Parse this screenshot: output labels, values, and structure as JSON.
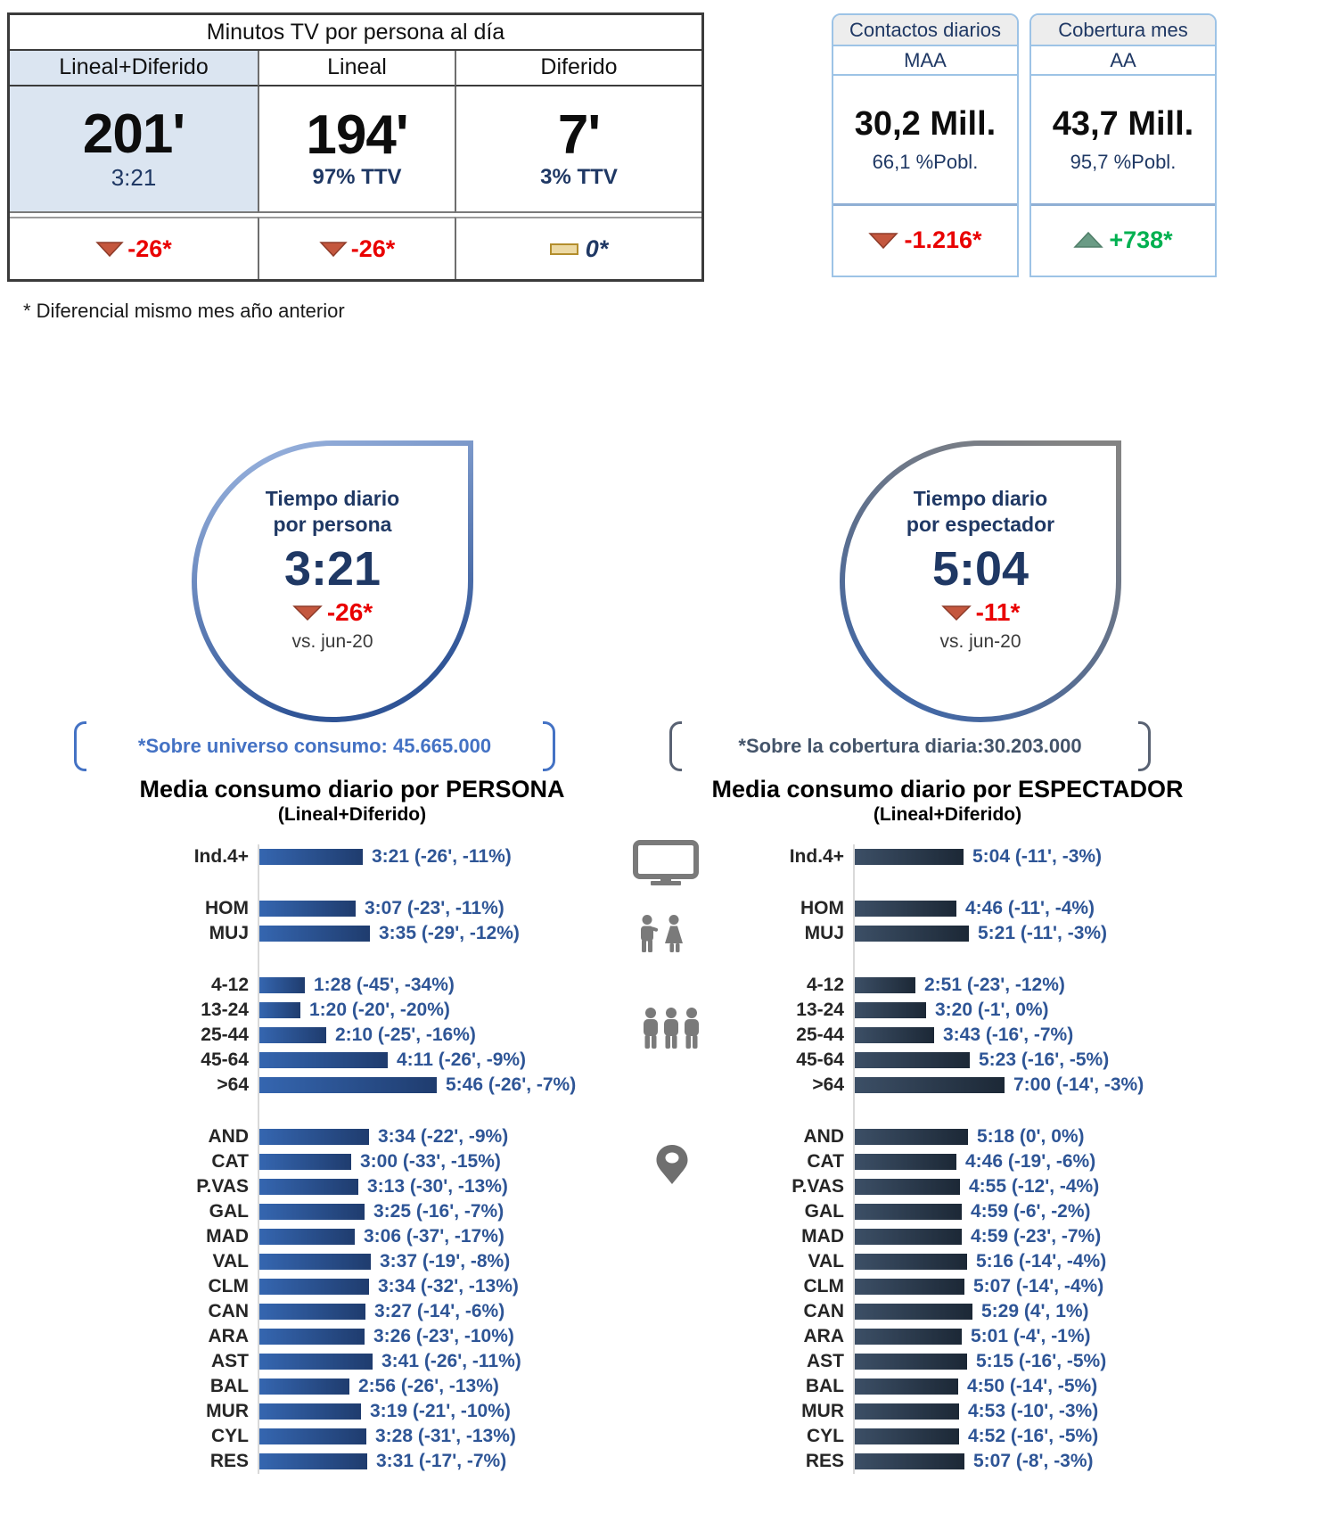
{
  "minutes_table": {
    "title": "Minutos TV por persona al día",
    "columns": [
      {
        "header": "Lineal+Diferido",
        "value": "201'",
        "sub": "3:21",
        "change": "-26*",
        "indicator": "down",
        "trend": "negative"
      },
      {
        "header": "Lineal",
        "value": "194'",
        "sub": "97% TTV",
        "change": "-26*",
        "indicator": "down",
        "trend": "negative"
      },
      {
        "header": "Diferido",
        "value": "7'",
        "sub": "3% TTV",
        "change": "0*",
        "indicator": "flat",
        "trend": "neutral"
      }
    ]
  },
  "kpi_boxes": [
    {
      "title": "Contactos diarios",
      "audience": "MAA",
      "value": "30,2 Mill.",
      "sub": "66,1 %Pobl.",
      "change": "-1.216*",
      "indicator": "down",
      "trend": "negative"
    },
    {
      "title": "Cobertura mes",
      "audience": "AA",
      "value": "43,7 Mill.",
      "sub": "95,7 %Pobl.",
      "change": "+738*",
      "indicator": "up",
      "trend": "positive"
    }
  ],
  "footnote": "* Diferencial  mismo mes año anterior",
  "drops": [
    {
      "title_lines": [
        "Tiempo diario",
        "por persona"
      ],
      "value": "3:21",
      "change": "-26*",
      "vs": "vs. jun-20"
    },
    {
      "title_lines": [
        "Tiempo diario",
        "por espectador"
      ],
      "value": "5:04",
      "change": "-11*",
      "vs": "vs. jun-20"
    }
  ],
  "icons": {
    "total": "tv-icon",
    "gender": "couple-icon",
    "age": "people-group-icon",
    "region": "location-pin-icon"
  },
  "colors": {
    "navy": "#1f3864",
    "chart_value_blue": "#2e5596",
    "negative_red": "#e90000",
    "positive_green": "#00b050",
    "person_bar_start": "#3566b0",
    "person_bar_end": "#1f3c6e",
    "spectator_bar_start": "#3c4f66",
    "spectator_bar_end": "#1c2836",
    "note_blue": "#4472c4",
    "note_slate": "#44546a"
  },
  "chart_data": [
    {
      "type": "bar",
      "orientation": "horizontal",
      "title": "Media consumo diario por PERSONA",
      "subtitle": "(Lineal+Diferido)",
      "note": "*Sobre universo consumo: 45.665.000",
      "unit": "hh:mm per day (diff vs jun-20)",
      "categories": [
        "Ind.4+",
        "HOM",
        "MUJ",
        "4-12",
        "13-24",
        "25-44",
        "45-64",
        ">64",
        "AND",
        "CAT",
        "P.VAS",
        "GAL",
        "MAD",
        "VAL",
        "CLM",
        "CAN",
        "ARA",
        "AST",
        "BAL",
        "MUR",
        "CYL",
        "RES"
      ],
      "values_hhmm": [
        "3:21",
        "3:07",
        "3:35",
        "1:28",
        "1:20",
        "2:10",
        "4:11",
        "5:46",
        "3:34",
        "3:00",
        "3:13",
        "3:25",
        "3:06",
        "3:37",
        "3:34",
        "3:27",
        "3:26",
        "3:41",
        "2:56",
        "3:19",
        "3:28",
        "3:31"
      ],
      "annotations": [
        "(-26', -11%)",
        "(-23', -11%)",
        "(-29', -12%)",
        "(-45', -34%)",
        "(-20', -20%)",
        "(-25', -16%)",
        "(-26', -9%)",
        "(-26', -7%)",
        "(-22', -9%)",
        "(-33', -15%)",
        "(-30', -13%)",
        "(-16', -7%)",
        "(-37', -17%)",
        "(-19', -8%)",
        "(-32', -13%)",
        "(-14', -6%)",
        "(-23', -10%)",
        "(-26', -11%)",
        "(-26', -13%)",
        "(-21', -10%)",
        "(-31', -13%)",
        "(-17', -7%)"
      ],
      "group_breaks_after": [
        0,
        2,
        7
      ],
      "bar_color_start": "#3566b0",
      "bar_color_end": "#1f3c6e",
      "value_color": "#2e5596"
    },
    {
      "type": "bar",
      "orientation": "horizontal",
      "title": "Media consumo diario por ESPECTADOR",
      "subtitle": "(Lineal+Diferido)",
      "note": "*Sobre la cobertura diaria:30.203.000",
      "unit": "hh:mm per day (diff vs jun-20)",
      "categories": [
        "Ind.4+",
        "HOM",
        "MUJ",
        "4-12",
        "13-24",
        "25-44",
        "45-64",
        ">64",
        "AND",
        "CAT",
        "P.VAS",
        "GAL",
        "MAD",
        "VAL",
        "CLM",
        "CAN",
        "ARA",
        "AST",
        "BAL",
        "MUR",
        "CYL",
        "RES"
      ],
      "values_hhmm": [
        "5:04",
        "4:46",
        "5:21",
        "2:51",
        "3:20",
        "3:43",
        "5:23",
        "7:00",
        "5:18",
        "4:46",
        "4:55",
        "4:59",
        "4:59",
        "5:16",
        "5:07",
        "5:29",
        "5:01",
        "5:15",
        "4:50",
        "4:53",
        "4:52",
        "5:07"
      ],
      "annotations": [
        "(-11', -3%)",
        "(-11', -4%)",
        "(-11', -3%)",
        "(-23', -12%)",
        "(-1', 0%)",
        "(-16', -7%)",
        "(-16', -5%)",
        "(-14', -3%)",
        "(0', 0%)",
        "(-19', -6%)",
        "(-12', -4%)",
        "(-6', -2%)",
        "(-23', -7%)",
        "(-14', -4%)",
        "(-14', -4%)",
        "(4', 1%)",
        "(-4', -1%)",
        "(-16', -5%)",
        "(-14', -5%)",
        "(-10', -3%)",
        "(-16', -5%)",
        "(-8', -3%)"
      ],
      "group_breaks_after": [
        0,
        2,
        7
      ],
      "bar_color_start": "#3c4f66",
      "bar_color_end": "#1c2836",
      "value_color": "#2e5596"
    }
  ]
}
